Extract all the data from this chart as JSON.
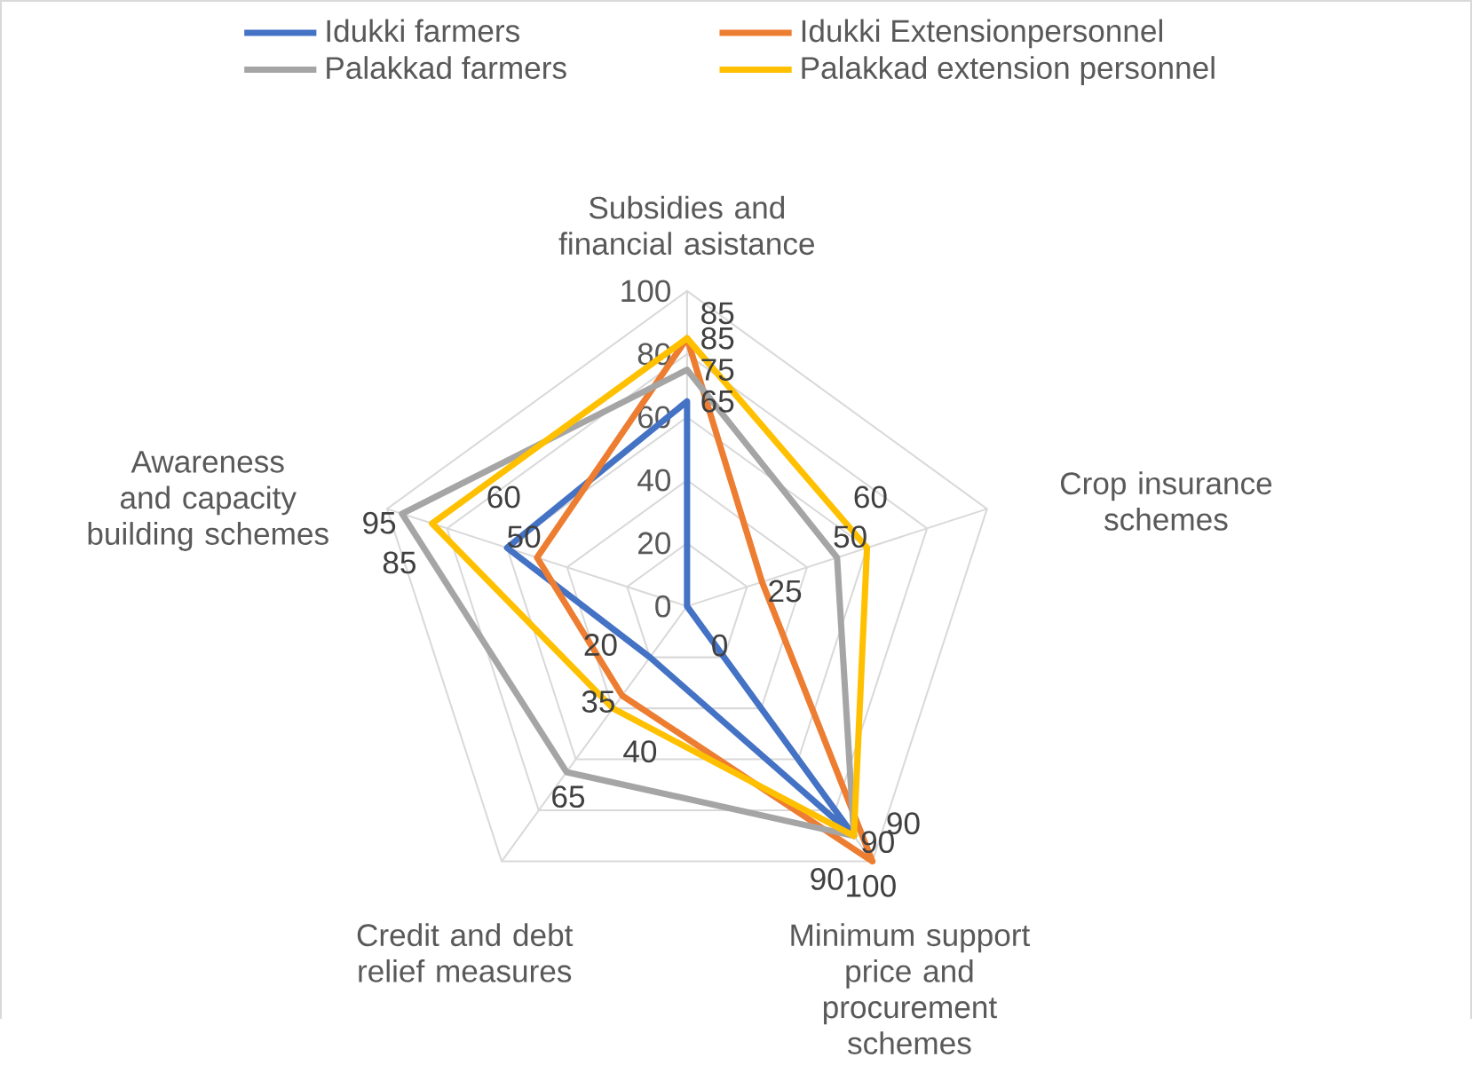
{
  "chart_data": {
    "type": "radar",
    "categories": [
      "Subsidies and financial asistance",
      "Crop insurance schemes",
      "Minimum support price and procurement schemes",
      "Credit and debt relief measures",
      "Awareness and capacity building schemes"
    ],
    "series": [
      {
        "name": "Idukki farmers",
        "color": "#4472c4",
        "values": [
          65,
          0,
          90,
          20,
          60
        ]
      },
      {
        "name": "Idukki Extensionpersonnel",
        "color": "#ed7d31",
        "values": [
          85,
          25,
          100,
          35,
          50
        ]
      },
      {
        "name": "Palakkad farmers",
        "color": "#a5a5a5",
        "values": [
          75,
          50,
          90,
          65,
          95
        ]
      },
      {
        "name": "Palakkad extension personnel",
        "color": "#ffc000",
        "values": [
          85,
          60,
          90,
          40,
          85
        ]
      }
    ],
    "ylim": [
      0,
      100
    ],
    "yticks": [
      0,
      20,
      40,
      60,
      80,
      100
    ],
    "grid": true,
    "data_labels": true,
    "legend": "top"
  }
}
